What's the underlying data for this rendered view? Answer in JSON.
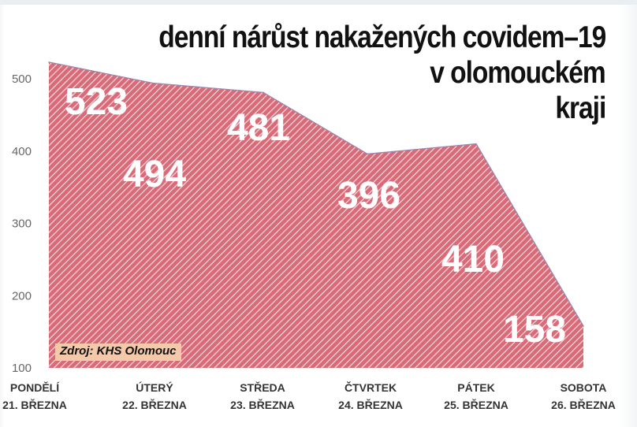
{
  "chart_data": {
    "type": "area",
    "title_lines": [
      "denní nárůst nakažených covidem–19",
      "v olomouckém",
      "kraji"
    ],
    "categories": [
      {
        "day": "PONDĚLÍ",
        "date": "21. BŘEZNA"
      },
      {
        "day": "ÚTERÝ",
        "date": "22. BŘEZNA"
      },
      {
        "day": "STŘEDA",
        "date": "23. BŘEZNA"
      },
      {
        "day": "ČTVRTEK",
        "date": "24. BŘEZNA"
      },
      {
        "day": "PÁTEK",
        "date": "25. BŘEZNA"
      },
      {
        "day": "SOBOTA",
        "date": "26. BŘEZNA"
      }
    ],
    "values": [
      523,
      494,
      481,
      396,
      410,
      158
    ],
    "data_labels": [
      "523",
      "494",
      "481",
      "396",
      "410",
      "158"
    ],
    "y_ticks": [
      100,
      200,
      300,
      400,
      500
    ],
    "ylim": [
      100,
      520
    ],
    "grid": false,
    "fill_color": "#d96a78",
    "hatch_color": "#f5dde1",
    "outline_color": "#9a86ae",
    "source": "Zdroj: KHS Olomouc"
  }
}
